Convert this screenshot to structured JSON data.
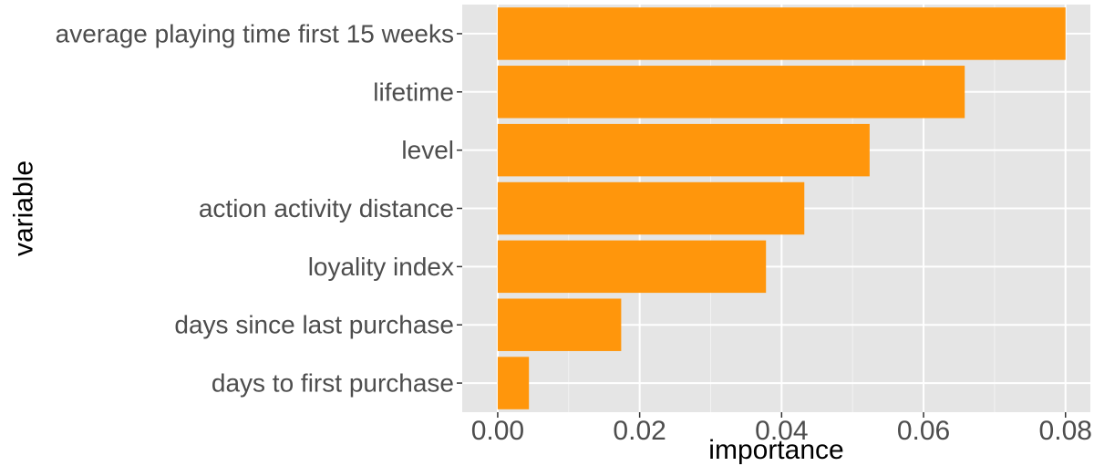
{
  "chart_data": {
    "type": "bar",
    "orientation": "horizontal",
    "categories": [
      "average playing time first 15 weeks",
      "lifetime",
      "level",
      "action activity distance",
      "loyality index",
      "days since last purchase",
      "days to first purchase"
    ],
    "values": [
      0.08,
      0.0658,
      0.0524,
      0.0432,
      0.0378,
      0.0174,
      0.0044
    ],
    "title": "",
    "xlabel": "importance",
    "ylabel": "variable",
    "xlim": [
      -0.005,
      0.0835
    ],
    "xticks": [
      0.0,
      0.02,
      0.04,
      0.06,
      0.08
    ],
    "xtick_labels": [
      "0.00",
      "0.02",
      "0.04",
      "0.06",
      "0.08"
    ],
    "grid": true,
    "legend": "none",
    "colors": {
      "bar": "#ff960c",
      "panel_background": "#e5e5e5",
      "grid_major": "#ffffff",
      "grid_minor": "#f2f2f2",
      "tick_text": "#4d4d4d",
      "title_text": "#000000"
    }
  }
}
